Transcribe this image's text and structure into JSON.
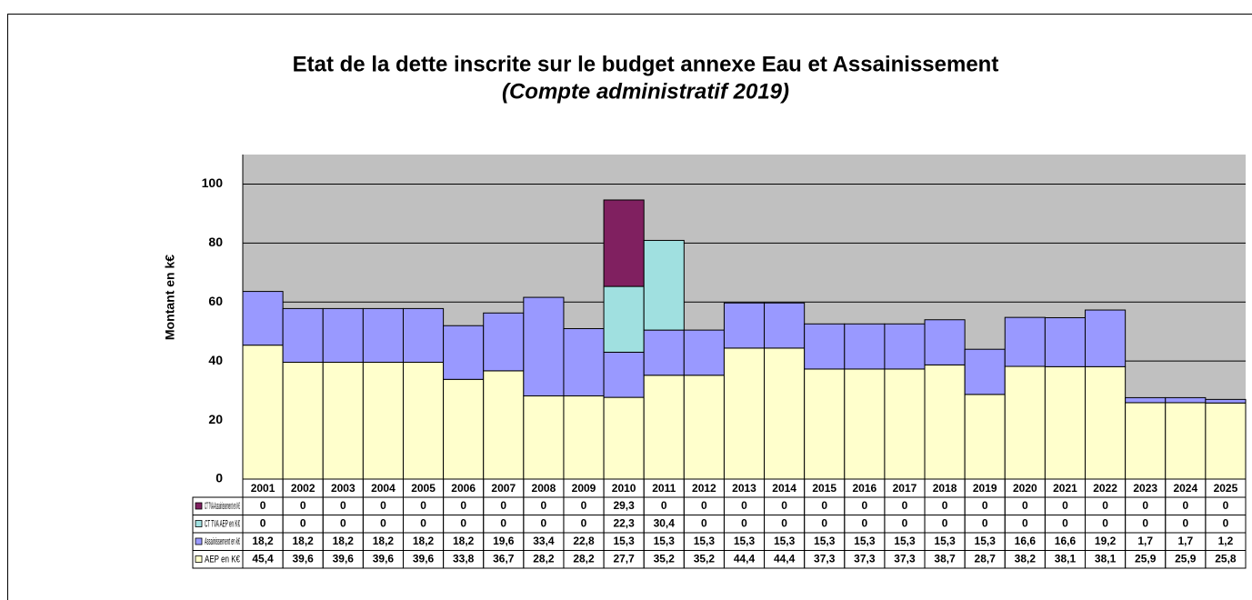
{
  "chart_data": {
    "type": "stacked-bar",
    "title": "Etat de la dette inscrite sur le budget annexe Eau et Assainissement",
    "subtitle": "(Compte administratif 2019)",
    "y_label": "Montant en k€",
    "categories": [
      "2001",
      "2002",
      "2003",
      "2004",
      "2005",
      "2006",
      "2007",
      "2008",
      "2009",
      "2010",
      "2011",
      "2012",
      "2013",
      "2014",
      "2015",
      "2016",
      "2017",
      "2018",
      "2019",
      "2020",
      "2021",
      "2022",
      "2023",
      "2024",
      "2025"
    ],
    "ylim": [
      0,
      110
    ],
    "yticks": [
      0,
      20,
      40,
      60,
      80,
      100
    ],
    "grid": true,
    "series": [
      {
        "name": "AEP en K€",
        "color": "#ffffcc",
        "values": [
          45.4,
          39.6,
          39.6,
          39.6,
          39.6,
          33.8,
          36.7,
          28.2,
          28.2,
          27.7,
          35.2,
          35.2,
          44.4,
          44.4,
          37.3,
          37.3,
          37.3,
          38.7,
          28.7,
          38.2,
          38.1,
          38.1,
          25.9,
          25.9,
          25.8
        ],
        "value_labels": [
          "45,4",
          "39,6",
          "39,6",
          "39,6",
          "39,6",
          "33,8",
          "36,7",
          "28,2",
          "28,2",
          "27,7",
          "35,2",
          "35,2",
          "44,4",
          "44,4",
          "37,3",
          "37,3",
          "37,3",
          "38,7",
          "28,7",
          "38,2",
          "38,1",
          "38,1",
          "25,9",
          "25,9",
          "25,8"
        ]
      },
      {
        "name": "Assainissement en k€",
        "color": "#9999ff",
        "values": [
          18.2,
          18.2,
          18.2,
          18.2,
          18.2,
          18.2,
          19.6,
          33.4,
          22.8,
          15.3,
          15.3,
          15.3,
          15.3,
          15.3,
          15.3,
          15.3,
          15.3,
          15.3,
          15.3,
          16.6,
          16.6,
          19.2,
          1.7,
          1.7,
          1.2
        ],
        "value_labels": [
          "18,2",
          "18,2",
          "18,2",
          "18,2",
          "18,2",
          "18,2",
          "19,6",
          "33,4",
          "22,8",
          "15,3",
          "15,3",
          "15,3",
          "15,3",
          "15,3",
          "15,3",
          "15,3",
          "15,3",
          "15,3",
          "15,3",
          "16,6",
          "16,6",
          "19,2",
          "1,7",
          "1,7",
          "1,2"
        ]
      },
      {
        "name": "CT TVA AEP en K€",
        "color": "#a0e0e0",
        "values": [
          0,
          0,
          0,
          0,
          0,
          0,
          0,
          0,
          0,
          22.3,
          30.4,
          0,
          0,
          0,
          0,
          0,
          0,
          0,
          0,
          0,
          0,
          0,
          0,
          0,
          0
        ],
        "value_labels": [
          "0",
          "0",
          "0",
          "0",
          "0",
          "0",
          "0",
          "0",
          "0",
          "22,3",
          "30,4",
          "0",
          "0",
          "0",
          "0",
          "0",
          "0",
          "0",
          "0",
          "0",
          "0",
          "0",
          "0",
          "0",
          "0"
        ]
      },
      {
        "name": "CT TVA Assainissement en K€",
        "color": "#802060",
        "values": [
          0,
          0,
          0,
          0,
          0,
          0,
          0,
          0,
          0,
          29.3,
          0,
          0,
          0,
          0,
          0,
          0,
          0,
          0,
          0,
          0,
          0,
          0,
          0,
          0,
          0
        ],
        "value_labels": [
          "0",
          "0",
          "0",
          "0",
          "0",
          "0",
          "0",
          "0",
          "0",
          "29,3",
          "0",
          "0",
          "0",
          "0",
          "0",
          "0",
          "0",
          "0",
          "0",
          "0",
          "0",
          "0",
          "0",
          "0",
          "0"
        ]
      }
    ]
  }
}
